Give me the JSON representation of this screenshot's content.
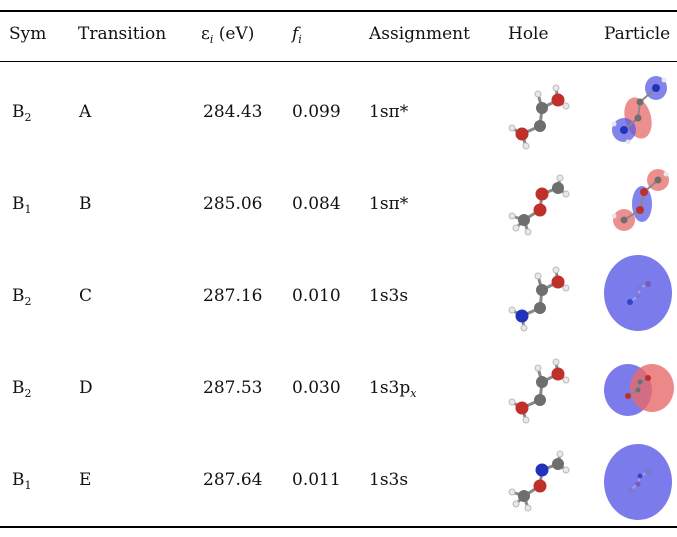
{
  "headers": {
    "sym": "Sym",
    "transition": "Transition",
    "energy_symbol": "ε",
    "energy_sub": "i",
    "energy_unit": "(eV)",
    "f_symbol": "f",
    "f_sub": "i",
    "assignment": "Assignment",
    "hole": "Hole",
    "particle": "Particle"
  },
  "rows": [
    {
      "sym": "B",
      "sym_sub": "2",
      "transition": "A",
      "energy": "284.43",
      "f": "0.099",
      "assignment": "1sπ*",
      "assignment_sub": ""
    },
    {
      "sym": "B",
      "sym_sub": "1",
      "transition": "B",
      "energy": "285.06",
      "f": "0.084",
      "assignment": "1sπ*",
      "assignment_sub": ""
    },
    {
      "sym": "B",
      "sym_sub": "2",
      "transition": "C",
      "energy": "287.16",
      "f": "0.010",
      "assignment": "1s3s",
      "assignment_sub": ""
    },
    {
      "sym": "B",
      "sym_sub": "2",
      "transition": "D",
      "energy": "287.53",
      "f": "0.030",
      "assignment": "1s3p",
      "assignment_sub": "x"
    },
    {
      "sym": "B",
      "sym_sub": "1",
      "transition": "E",
      "energy": "287.64",
      "f": "0.011",
      "assignment": "1s3s",
      "assignment_sub": ""
    }
  ],
  "colors": {
    "carbon": "#6e6e6e",
    "oxygen": "#c0302a",
    "nitrogen": "#2233bb",
    "hydrogen": "#e8e8e8",
    "lobe_positive": "#5a5ae6",
    "lobe_negative": "#e86a6a"
  }
}
